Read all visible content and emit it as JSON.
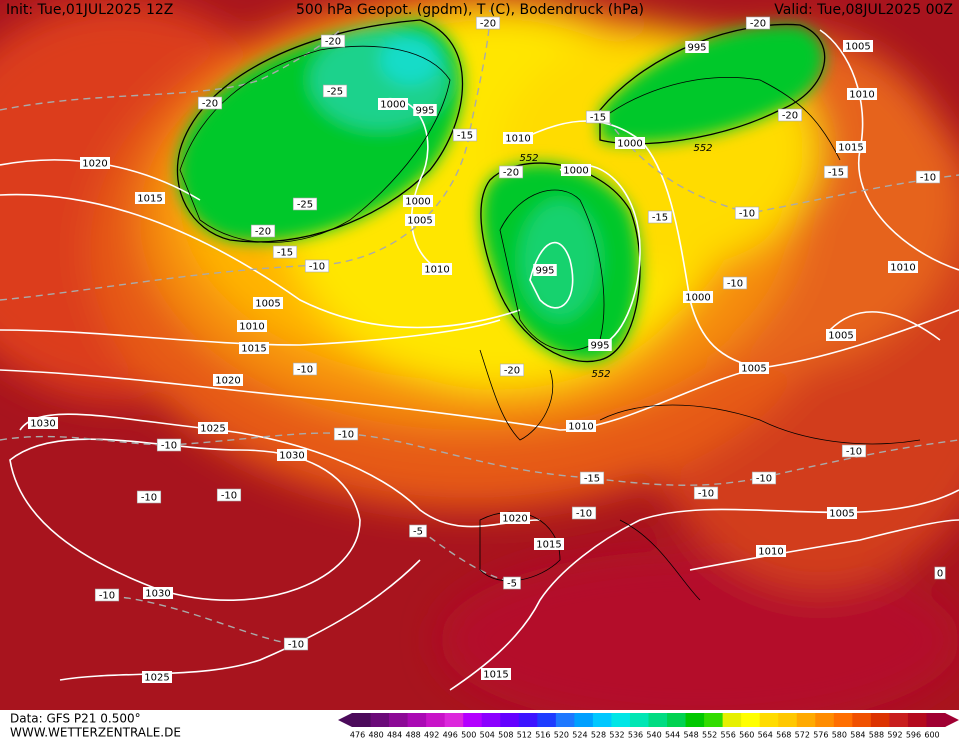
{
  "header": {
    "init": "Init: Tue,01JUL2025 12Z",
    "title": "500 hPa Geopot. (gpdm), T (C), Bodendruck (hPa)",
    "valid": "Valid: Tue,08JUL2025 00Z"
  },
  "footer": {
    "data_source": "Data: GFS P21 0.500°",
    "website": "WWW.WETTERZENTRALE.DE"
  },
  "colorbar": {
    "labels": [
      "476",
      "480",
      "484",
      "488",
      "492",
      "496",
      "500",
      "504",
      "508",
      "512",
      "516",
      "520",
      "524",
      "528",
      "532",
      "536",
      "540",
      "544",
      "548",
      "552",
      "556",
      "560",
      "564",
      "568",
      "572",
      "576",
      "580",
      "584",
      "588",
      "592",
      "596",
      "600"
    ],
    "colors": [
      "#4b0a5a",
      "#6a0a78",
      "#8c0a96",
      "#aa0ab4",
      "#c814c8",
      "#dc28dc",
      "#b400ff",
      "#8c00ff",
      "#6400ff",
      "#3c14ff",
      "#1e3cff",
      "#1e78ff",
      "#00a0ff",
      "#00c8ff",
      "#00e6e6",
      "#00e6b4",
      "#00dc82",
      "#00d250",
      "#00c800",
      "#32dc00",
      "#e6f000",
      "#ffff00",
      "#ffdc00",
      "#ffc800",
      "#ffaa00",
      "#ff8c00",
      "#ff6e00",
      "#f05000",
      "#dc3200",
      "#c81e1e",
      "#b40a1e",
      "#a00032"
    ]
  },
  "map": {
    "pressure_labels": [
      "1020",
      "1015",
      "1005",
      "1010",
      "1015",
      "1020",
      "1025",
      "1030",
      "1030",
      "1030",
      "1025",
      "1015",
      "1015",
      "1020",
      "1010",
      "1005",
      "1000",
      "995",
      "995",
      "1000",
      "1010",
      "1000",
      "995",
      "1005",
      "1010",
      "1015",
      "1010",
      "1005",
      "1005",
      "1010",
      "1000",
      "995",
      "1000",
      "1005",
      "1010"
    ],
    "temperature_labels": [
      "-20",
      "-20",
      "-20",
      "-25",
      "-20",
      "-15",
      "-15",
      "-20",
      "-20",
      "-25",
      "-20",
      "-15",
      "-10",
      "-15",
      "-15",
      "-10",
      "-10",
      "-10",
      "-10",
      "-20",
      "-10",
      "-10",
      "-10",
      "-10",
      "-15",
      "-10",
      "-10",
      "-10",
      "-10",
      "-5",
      "-5",
      "-10",
      "-10",
      "0"
    ],
    "geopotential_labels": [
      "552",
      "552",
      "552"
    ]
  }
}
